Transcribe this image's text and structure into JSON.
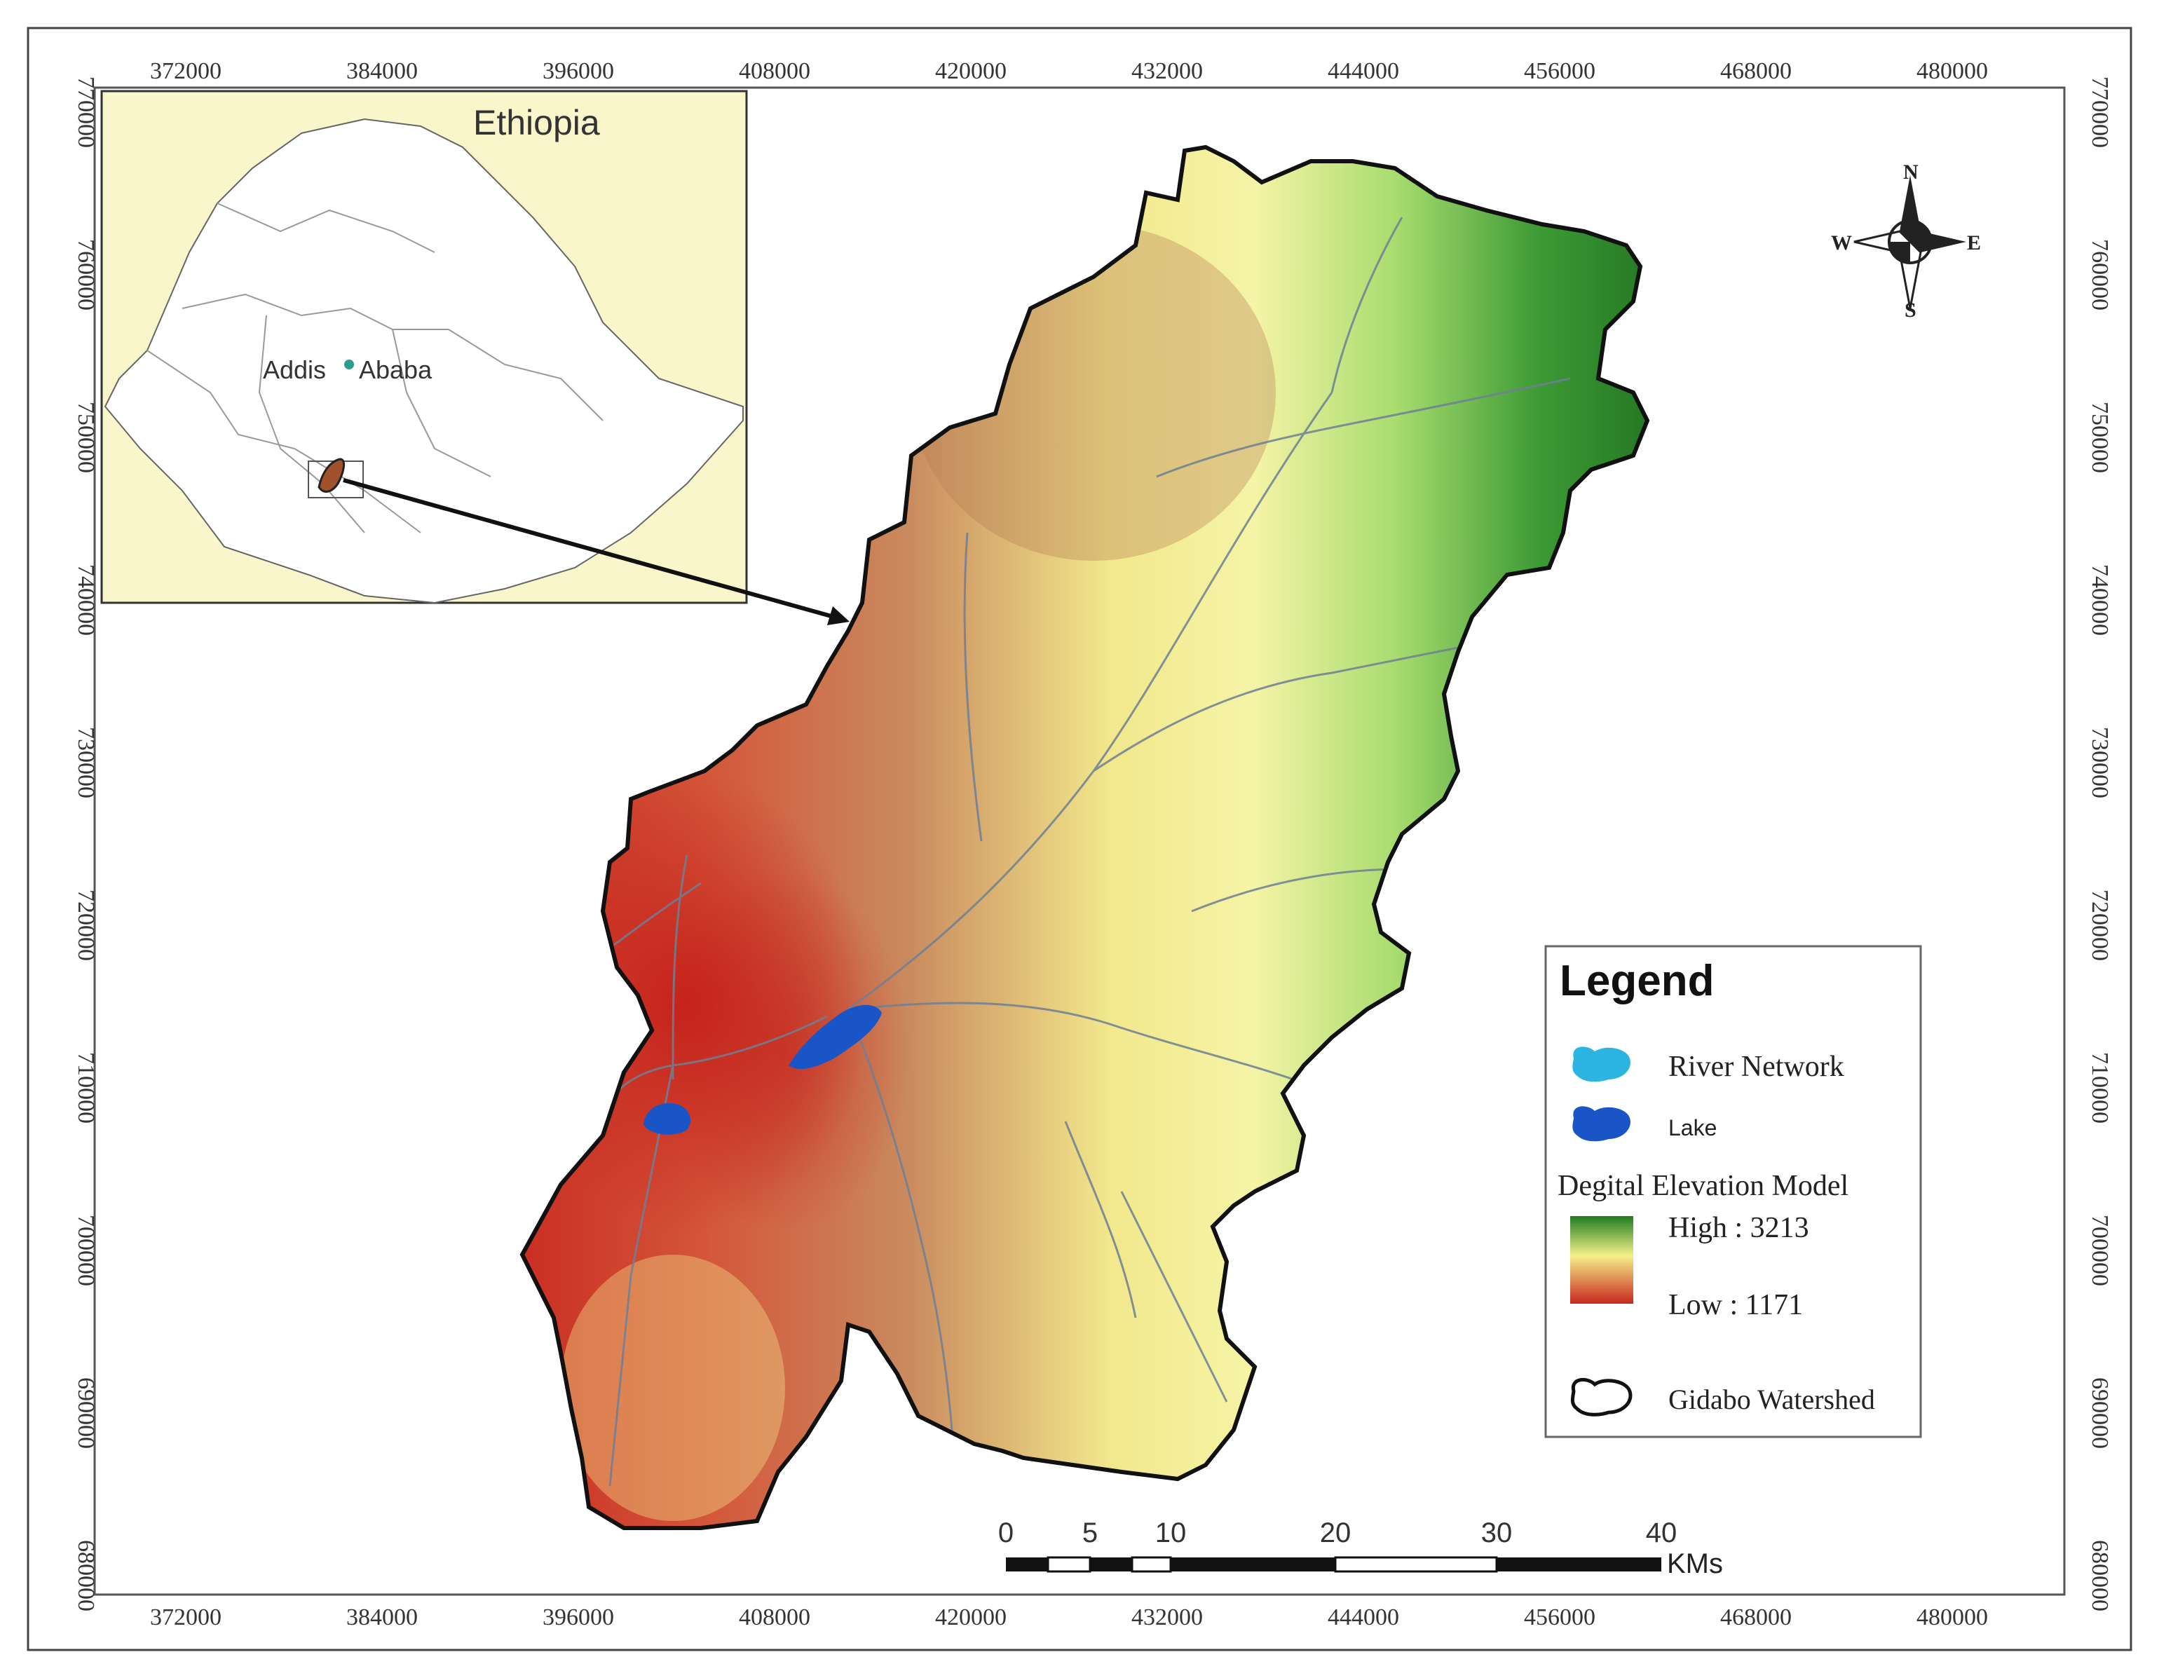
{
  "map": {
    "x_ticks": [
      "372000",
      "384000",
      "396000",
      "408000",
      "420000",
      "432000",
      "444000",
      "456000",
      "468000",
      "480000"
    ],
    "y_ticks": [
      "770000",
      "760000",
      "750000",
      "740000",
      "730000",
      "720000",
      "710000",
      "700000",
      "690000",
      "680000"
    ]
  },
  "inset": {
    "title": "Ethiopia",
    "capital_label_left": "Addis",
    "capital_label_right": "Ababa"
  },
  "north_arrow": {
    "n": "N",
    "s": "S",
    "e": "E",
    "w": "W"
  },
  "legend": {
    "title": "Legend",
    "river_label": "River Network",
    "lake_label": "Lake",
    "dem_title": "Degital Elevation Model",
    "dem_high": "High : 3213",
    "dem_low": "Low : 1171",
    "watershed_label": "Gidabo Watershed",
    "colors": {
      "river": "#2bb5e0",
      "lake": "#1a55c8",
      "dem_high": "#1f7d1f",
      "dem_mid": "#f5f08a",
      "dem_low": "#c8281e"
    }
  },
  "scalebar": {
    "labels": [
      "0",
      "5",
      "10",
      "20",
      "30",
      "40"
    ],
    "unit": "KMs"
  }
}
